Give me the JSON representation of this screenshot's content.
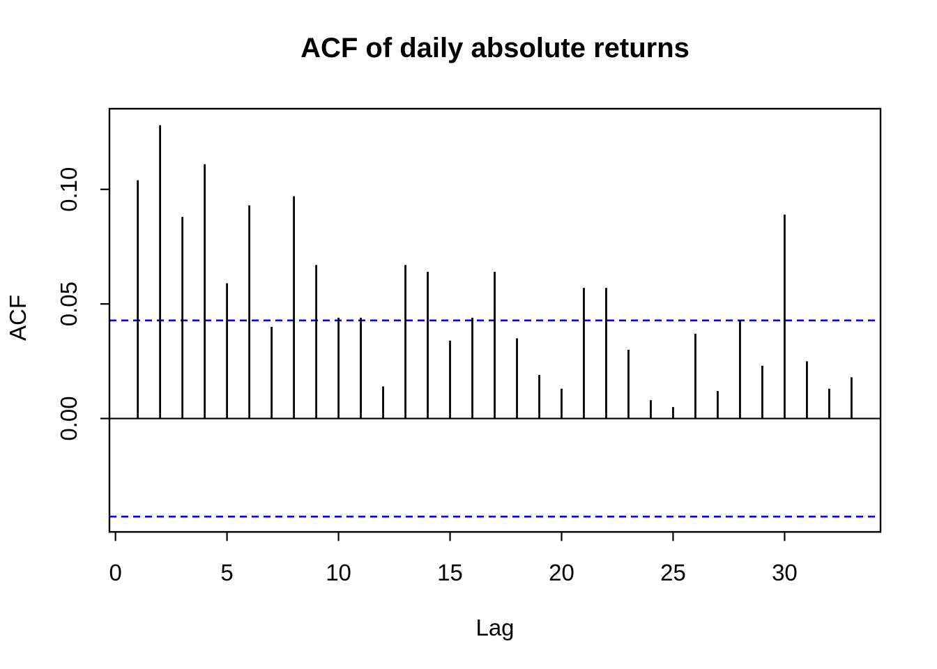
{
  "chart_data": {
    "type": "bar",
    "title": "ACF of daily absolute returns",
    "xlabel": "Lag",
    "ylabel": "ACF",
    "x": [
      1,
      2,
      3,
      4,
      5,
      6,
      7,
      8,
      9,
      10,
      11,
      12,
      13,
      14,
      15,
      16,
      17,
      18,
      19,
      20,
      21,
      22,
      23,
      24,
      25,
      26,
      27,
      28,
      29,
      30,
      31,
      32,
      33
    ],
    "values": [
      0.104,
      0.128,
      0.088,
      0.111,
      0.059,
      0.093,
      0.04,
      0.097,
      0.067,
      0.044,
      0.044,
      0.014,
      0.067,
      0.064,
      0.034,
      0.044,
      0.064,
      0.035,
      0.019,
      0.013,
      0.057,
      0.057,
      0.03,
      0.008,
      0.005,
      0.037,
      0.012,
      0.043,
      0.023,
      0.089,
      0.025,
      0.013,
      0.018
    ],
    "confidence_bound": 0.0428,
    "xticks": [
      0,
      5,
      10,
      15,
      20,
      25,
      30
    ],
    "xtick_labels": [
      "0",
      "5",
      "10",
      "15",
      "20",
      "25",
      "30"
    ],
    "yticks": [
      0.0,
      0.05,
      0.1
    ],
    "ytick_labels": [
      "0.00",
      "0.05",
      "0.10"
    ],
    "xlim": [
      -0.27,
      34.3
    ],
    "ylim": [
      -0.0495,
      0.1352
    ],
    "grid": false,
    "legend": null,
    "colors": {
      "bar": "#000000",
      "axis": "#000000",
      "confidence_line": "#0000FF",
      "background": "#FFFFFF"
    }
  }
}
